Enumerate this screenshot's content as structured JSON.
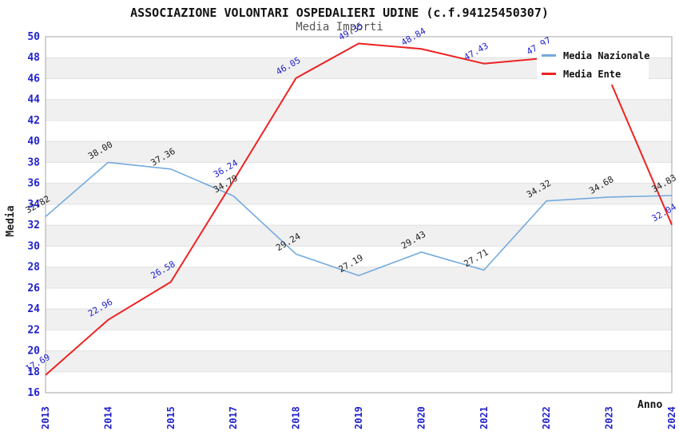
{
  "header": {
    "title": "ASSOCIAZIONE VOLONTARI OSPEDALIERI UDINE (c.f.94125450307)",
    "subtitle": "Media Importi"
  },
  "legend": {
    "items": [
      {
        "label": "Media Nazionale",
        "color": "#74aadd"
      },
      {
        "label": "Media Ente",
        "color": "#ee2222"
      }
    ]
  },
  "colors": {
    "axis_text": "#2222cc",
    "band_gray": "#f0f0f0",
    "grid_line": "#e0e0e0",
    "plot_border": "#a6a6a6",
    "dark_label": "#222222"
  },
  "chart_data": {
    "type": "line",
    "title": "ASSOCIAZIONE VOLONTARI OSPEDALIERI UDINE (c.f.94125450307)",
    "subtitle": "Media Importi",
    "xlabel": "Anno",
    "ylabel": "Media",
    "x": [
      "2013",
      "2014",
      "2015",
      "2017",
      "2018",
      "2019",
      "2020",
      "2021",
      "2022",
      "2023",
      "2024"
    ],
    "ylim": [
      16,
      50
    ],
    "ytick_step": 2,
    "grid": "horizontal-bands",
    "legend_position": "top-right",
    "series": [
      {
        "name": "Media Nazionale",
        "color": "#74aadd",
        "label_color": "#222222",
        "line_width": 1.6,
        "values": [
          32.82,
          38.0,
          37.36,
          34.79,
          29.24,
          27.19,
          29.43,
          27.71,
          34.32,
          34.68,
          34.83
        ],
        "labels": [
          "32.82",
          "38.00",
          "37.36",
          "34.79",
          "29.24",
          "27.19",
          "29.43",
          "27.71",
          "34.32",
          "34.68",
          "34.83"
        ]
      },
      {
        "name": "Media Ente",
        "color": "#ee2222",
        "label_color": "#2222cc",
        "line_width": 2,
        "values": [
          17.69,
          22.96,
          26.58,
          36.24,
          46.05,
          49.35,
          48.84,
          47.43,
          47.97,
          46.0,
          32.04
        ],
        "labels": [
          "17.69",
          "22.96",
          "26.58",
          "36.24",
          "46.05",
          "49.35",
          "48.84",
          "47.43",
          "47.97",
          null,
          "32.04"
        ]
      }
    ]
  }
}
